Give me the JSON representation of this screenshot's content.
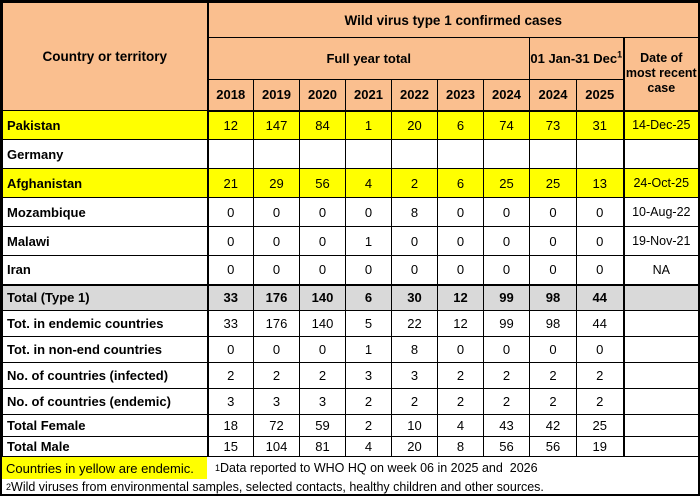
{
  "title": "Wild virus type 1 confirmed cases",
  "corner_label": "Country or territory",
  "header": {
    "full_year": "Full year total",
    "jan_dec": "01 Jan-31 Dec",
    "jan_dec_sup": "1",
    "date_col": "Date of most recent case",
    "full_year_years": [
      "2018",
      "2019",
      "2020",
      "2021",
      "2022",
      "2023",
      "2024"
    ],
    "jan_dec_years": [
      "2024",
      "2025"
    ]
  },
  "rows": [
    {
      "label": "Pakistan",
      "endemic": true,
      "emphasis": false,
      "values": [
        "12",
        "147",
        "84",
        "1",
        "20",
        "6",
        "74",
        "73",
        "31"
      ],
      "date": "14-Dec-25"
    },
    {
      "label": "Germany",
      "endemic": false,
      "emphasis": false,
      "values": [
        "",
        "",
        "",
        "",
        "",
        "",
        "",
        "",
        ""
      ],
      "date": ""
    },
    {
      "label": "Afghanistan",
      "endemic": true,
      "emphasis": false,
      "values": [
        "21",
        "29",
        "56",
        "4",
        "2",
        "6",
        "25",
        "25",
        "13"
      ],
      "date": "24-Oct-25"
    },
    {
      "label": "Mozambique",
      "endemic": false,
      "emphasis": false,
      "values": [
        "0",
        "0",
        "0",
        "0",
        "8",
        "0",
        "0",
        "0",
        "0"
      ],
      "date": "10-Aug-22"
    },
    {
      "label": "Malawi",
      "endemic": false,
      "emphasis": false,
      "values": [
        "0",
        "0",
        "0",
        "1",
        "0",
        "0",
        "0",
        "0",
        "0"
      ],
      "date": "19-Nov-21"
    },
    {
      "label": "Iran",
      "endemic": false,
      "emphasis": false,
      "values": [
        "0",
        "0",
        "0",
        "0",
        "0",
        "0",
        "0",
        "0",
        "0"
      ],
      "date": "NA"
    },
    {
      "label": "Total (Type 1)",
      "endemic": false,
      "emphasis": true,
      "values": [
        "33",
        "176",
        "140",
        "6",
        "30",
        "12",
        "99",
        "98",
        "44"
      ],
      "date": ""
    },
    {
      "label": "Tot. in endemic countries",
      "endemic": false,
      "emphasis": false,
      "values": [
        "33",
        "176",
        "140",
        "5",
        "22",
        "12",
        "99",
        "98",
        "44"
      ],
      "date": ""
    },
    {
      "label": "Tot. in non-end countries",
      "endemic": false,
      "emphasis": false,
      "values": [
        "0",
        "0",
        "0",
        "1",
        "8",
        "0",
        "0",
        "0",
        "0"
      ],
      "date": ""
    },
    {
      "label": "No. of countries (infected)",
      "endemic": false,
      "emphasis": false,
      "values": [
        "2",
        "2",
        "2",
        "3",
        "3",
        "2",
        "2",
        "2",
        "2"
      ],
      "date": ""
    },
    {
      "label": "No. of countries (endemic)",
      "endemic": false,
      "emphasis": false,
      "values": [
        "3",
        "3",
        "3",
        "2",
        "2",
        "2",
        "2",
        "2",
        "2"
      ],
      "date": ""
    },
    {
      "label": "Total Female",
      "endemic": false,
      "emphasis": false,
      "values": [
        "18",
        "72",
        "59",
        "2",
        "10",
        "4",
        "43",
        "42",
        "25"
      ],
      "date": ""
    },
    {
      "label": "Total Male",
      "endemic": false,
      "emphasis": false,
      "values": [
        "15",
        "104",
        "81",
        "4",
        "20",
        "8",
        "56",
        "56",
        "19"
      ],
      "date": ""
    }
  ],
  "footer": {
    "legend": "Countries in yellow are endemic.",
    "note1_sup": "1",
    "note1": "Data reported to WHO HQ on week 06 in 2025 and  2026",
    "note2_sup": "2",
    "note2": "Wild viruses from environmental samples, selected contacts, healthy children and other sources."
  },
  "colors": {
    "header_bg": "#FABF8F",
    "endemic_bg": "#FFFF00",
    "total_bg": "#D9D9D9"
  }
}
